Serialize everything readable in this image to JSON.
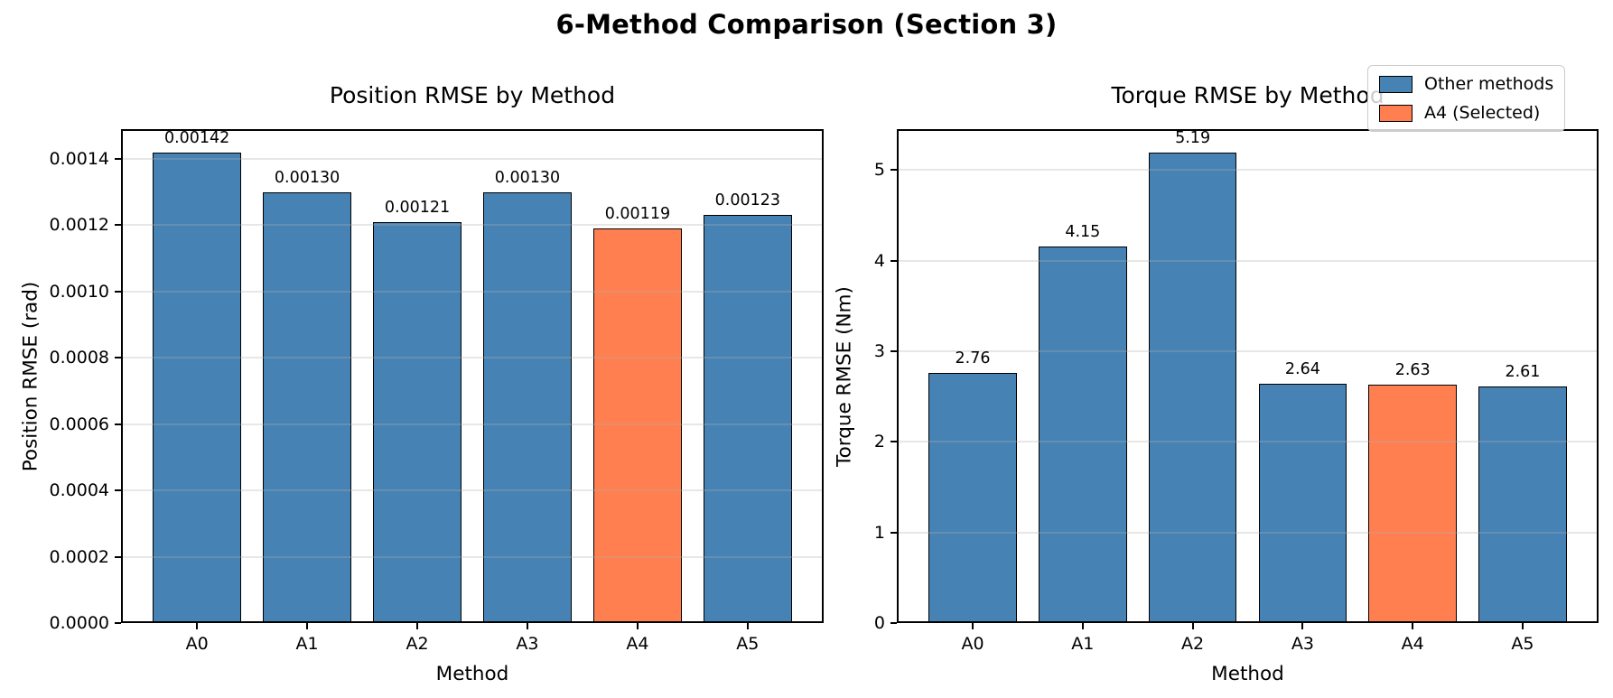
{
  "figure": {
    "suptitle": "6-Method Comparison (Section 3)"
  },
  "palette": {
    "other_methods": "#4682B4",
    "selected": "#FF7F50",
    "bar_edge": "#000000",
    "grid": "#B0B0B0"
  },
  "legend": {
    "items": [
      {
        "label": "Other methods",
        "color": "#4682B4"
      },
      {
        "label": "A4 (Selected)",
        "color": "#FF7F50"
      }
    ]
  },
  "chart_data": [
    {
      "type": "bar",
      "title": "Position RMSE by Method",
      "xlabel": "Method",
      "ylabel": "Position RMSE (rad)",
      "categories": [
        "A0",
        "A1",
        "A2",
        "A3",
        "A4",
        "A5"
      ],
      "values": [
        0.00142,
        0.0013,
        0.00121,
        0.0013,
        0.00119,
        0.00123
      ],
      "bar_labels": [
        "0.00142",
        "0.00130",
        "0.00121",
        "0.00130",
        "0.00119",
        "0.00123"
      ],
      "highlight_index": 4,
      "ylim": [
        0,
        0.00149
      ],
      "yticks": [
        0,
        0.0002,
        0.0004,
        0.0006,
        0.0008,
        0.001,
        0.0012,
        0.0014
      ],
      "ytick_labels": [
        "0.0000",
        "0.0002",
        "0.0004",
        "0.0006",
        "0.0008",
        "0.0010",
        "0.0012",
        "0.0014"
      ],
      "grid": "y-axis horizontal, light gray",
      "legend_position": "none"
    },
    {
      "type": "bar",
      "title": "Torque RMSE by Method",
      "xlabel": "Method",
      "ylabel": "Torque RMSE (Nm)",
      "categories": [
        "A0",
        "A1",
        "A2",
        "A3",
        "A4",
        "A5"
      ],
      "values": [
        2.76,
        4.15,
        5.19,
        2.64,
        2.63,
        2.61
      ],
      "bar_labels": [
        "2.76",
        "4.15",
        "5.19",
        "2.64",
        "2.63",
        "2.61"
      ],
      "highlight_index": 4,
      "ylim": [
        0,
        5.45
      ],
      "yticks": [
        0,
        1,
        2,
        3,
        4,
        5
      ],
      "ytick_labels": [
        "0",
        "1",
        "2",
        "3",
        "4",
        "5"
      ],
      "grid": "y-axis horizontal, light gray",
      "legend_position": "upper right"
    }
  ]
}
